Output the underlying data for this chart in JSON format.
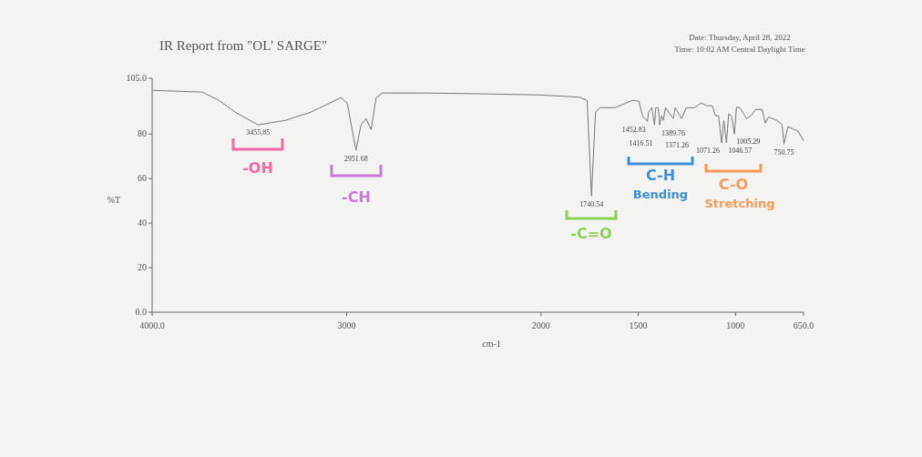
{
  "chart_data": {
    "type": "line",
    "title": "IR Report from \"OL' SARGE\"",
    "xlabel": "cm-1",
    "ylabel": "%T",
    "xlim": [
      4000,
      650
    ],
    "xticks": [
      {
        "value": 4000,
        "label": "4000.0"
      },
      3000,
      2000,
      1500,
      1000,
      {
        "value": 650,
        "label": "650.0"
      }
    ],
    "ylim": [
      0,
      105
    ],
    "yticks": [
      {
        "value": 0,
        "label": "0.0"
      },
      20,
      40,
      60,
      80,
      {
        "value": 105,
        "label": "105.0"
      }
    ],
    "series": [
      {
        "color": "#777777",
        "x": [
          4000,
          3741,
          3657,
          3573,
          3455.85,
          3314,
          3184,
          3029,
          2997,
          2951.68,
          2926,
          2900,
          2874,
          2848,
          2816,
          2600,
          2278,
          2000,
          1800,
          1763,
          1740.54,
          1720,
          1697,
          1620,
          1530,
          1497,
          1477,
          1452.83,
          1447,
          1430,
          1416.51,
          1410,
          1397,
          1389.76,
          1380,
          1371.26,
          1360,
          1320,
          1310,
          1277,
          1253,
          1210,
          1177,
          1147,
          1120,
          1103,
          1087,
          1071.26,
          1060,
          1046.57,
          1035,
          1020,
          1005.29,
          995,
          977,
          943,
          920,
          897,
          863,
          847,
          830,
          787,
          760,
          750.75,
          730,
          677,
          650
        ],
        "values": [
          99.6,
          98.8,
          95.1,
          89.8,
          84.1,
          86.1,
          89.8,
          96.3,
          93.9,
          72.7,
          84.1,
          86.9,
          82,
          96.3,
          98.4,
          98.4,
          98,
          97.5,
          96.5,
          95,
          52.2,
          89.8,
          91.8,
          91.8,
          95.1,
          94.7,
          87.8,
          85.7,
          89.8,
          91.8,
          84.1,
          91.8,
          91.8,
          84.1,
          88.2,
          86.1,
          91.8,
          86.9,
          91.8,
          86.9,
          91.8,
          91.8,
          93.9,
          92.7,
          92.7,
          88.2,
          88.2,
          76,
          86,
          76,
          89,
          88,
          80,
          92,
          91.8,
          86.9,
          88.2,
          91,
          91,
          84.9,
          87.6,
          86.1,
          84.1,
          75.5,
          83.3,
          81.2,
          77
        ]
      }
    ],
    "annotations": [
      "Date: Thursday, April 28, 2022",
      "Time: 10:02 AM Central Daylight Time",
      {
        "text": "3455.85",
        "x": 3455.85,
        "y": 84.1
      },
      {
        "text": "2951.68",
        "x": 2951.68,
        "y": 72.7
      },
      {
        "text": "1740.54",
        "x": 1740.54,
        "y": 52.2
      },
      {
        "text": "1452.83",
        "x": 1452.83,
        "y": 85.7
      },
      {
        "text": "1416.51",
        "x": 1416.51,
        "y": 84.1
      },
      {
        "text": "1389.76",
        "x": 1389.76,
        "y": 84.1
      },
      {
        "text": "1371.26",
        "x": 1371.26,
        "y": 86.1
      },
      {
        "text": "1071.26",
        "x": 1071.26,
        "y": 76
      },
      {
        "text": "1046.57",
        "x": 1046.57,
        "y": 76
      },
      {
        "text": "1005.29",
        "x": 1005.29,
        "y": 80
      },
      {
        "text": "750.75",
        "x": 750.75,
        "y": 75.5
      },
      "-OH",
      "-CH",
      "-C=O",
      "C-H",
      "Bending",
      "C-O",
      "Stretching"
    ]
  }
}
